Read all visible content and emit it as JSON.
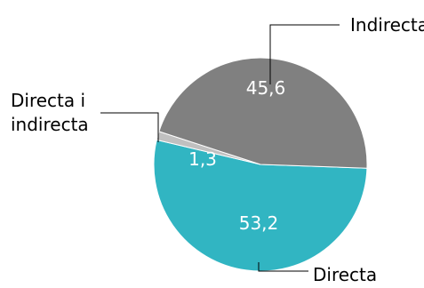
{
  "chart_data": {
    "type": "pie",
    "slices": [
      {
        "label": "Directa",
        "value": 53.2,
        "value_label": "53,2",
        "color": "#31B5C2"
      },
      {
        "label": "Directa i indirecta",
        "value": 1.3,
        "value_label": "1,3",
        "color": "#C0C0C0"
      },
      {
        "label": "Indirecta",
        "value": 45.6,
        "value_label": "45,6",
        "color": "#808080"
      }
    ],
    "legend": "none",
    "label_style": "callout lines to outside labels; values inside slices"
  },
  "labels": {
    "indirecta": "Indirecta",
    "directa_i_indirecta_line1": "Directa i",
    "directa_i_indirecta_line2": "indirecta",
    "directa": "Directa"
  }
}
